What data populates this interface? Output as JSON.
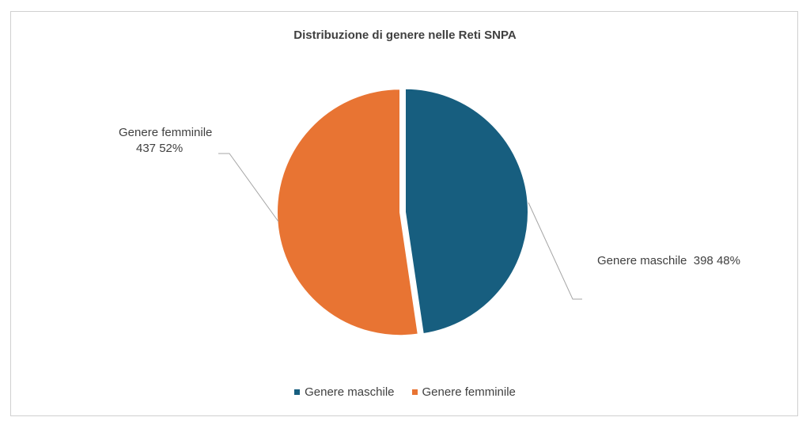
{
  "chart_data": {
    "type": "pie",
    "title": "Distribuzione di genere nelle Reti SNPA",
    "slices": [
      {
        "name": "Genere maschile",
        "value": 398,
        "percent": "48%",
        "color": "#175e7f"
      },
      {
        "name": "Genere femminile",
        "value": 437,
        "percent": "52%",
        "color": "#e87433"
      }
    ],
    "legend_position": "bottom"
  }
}
